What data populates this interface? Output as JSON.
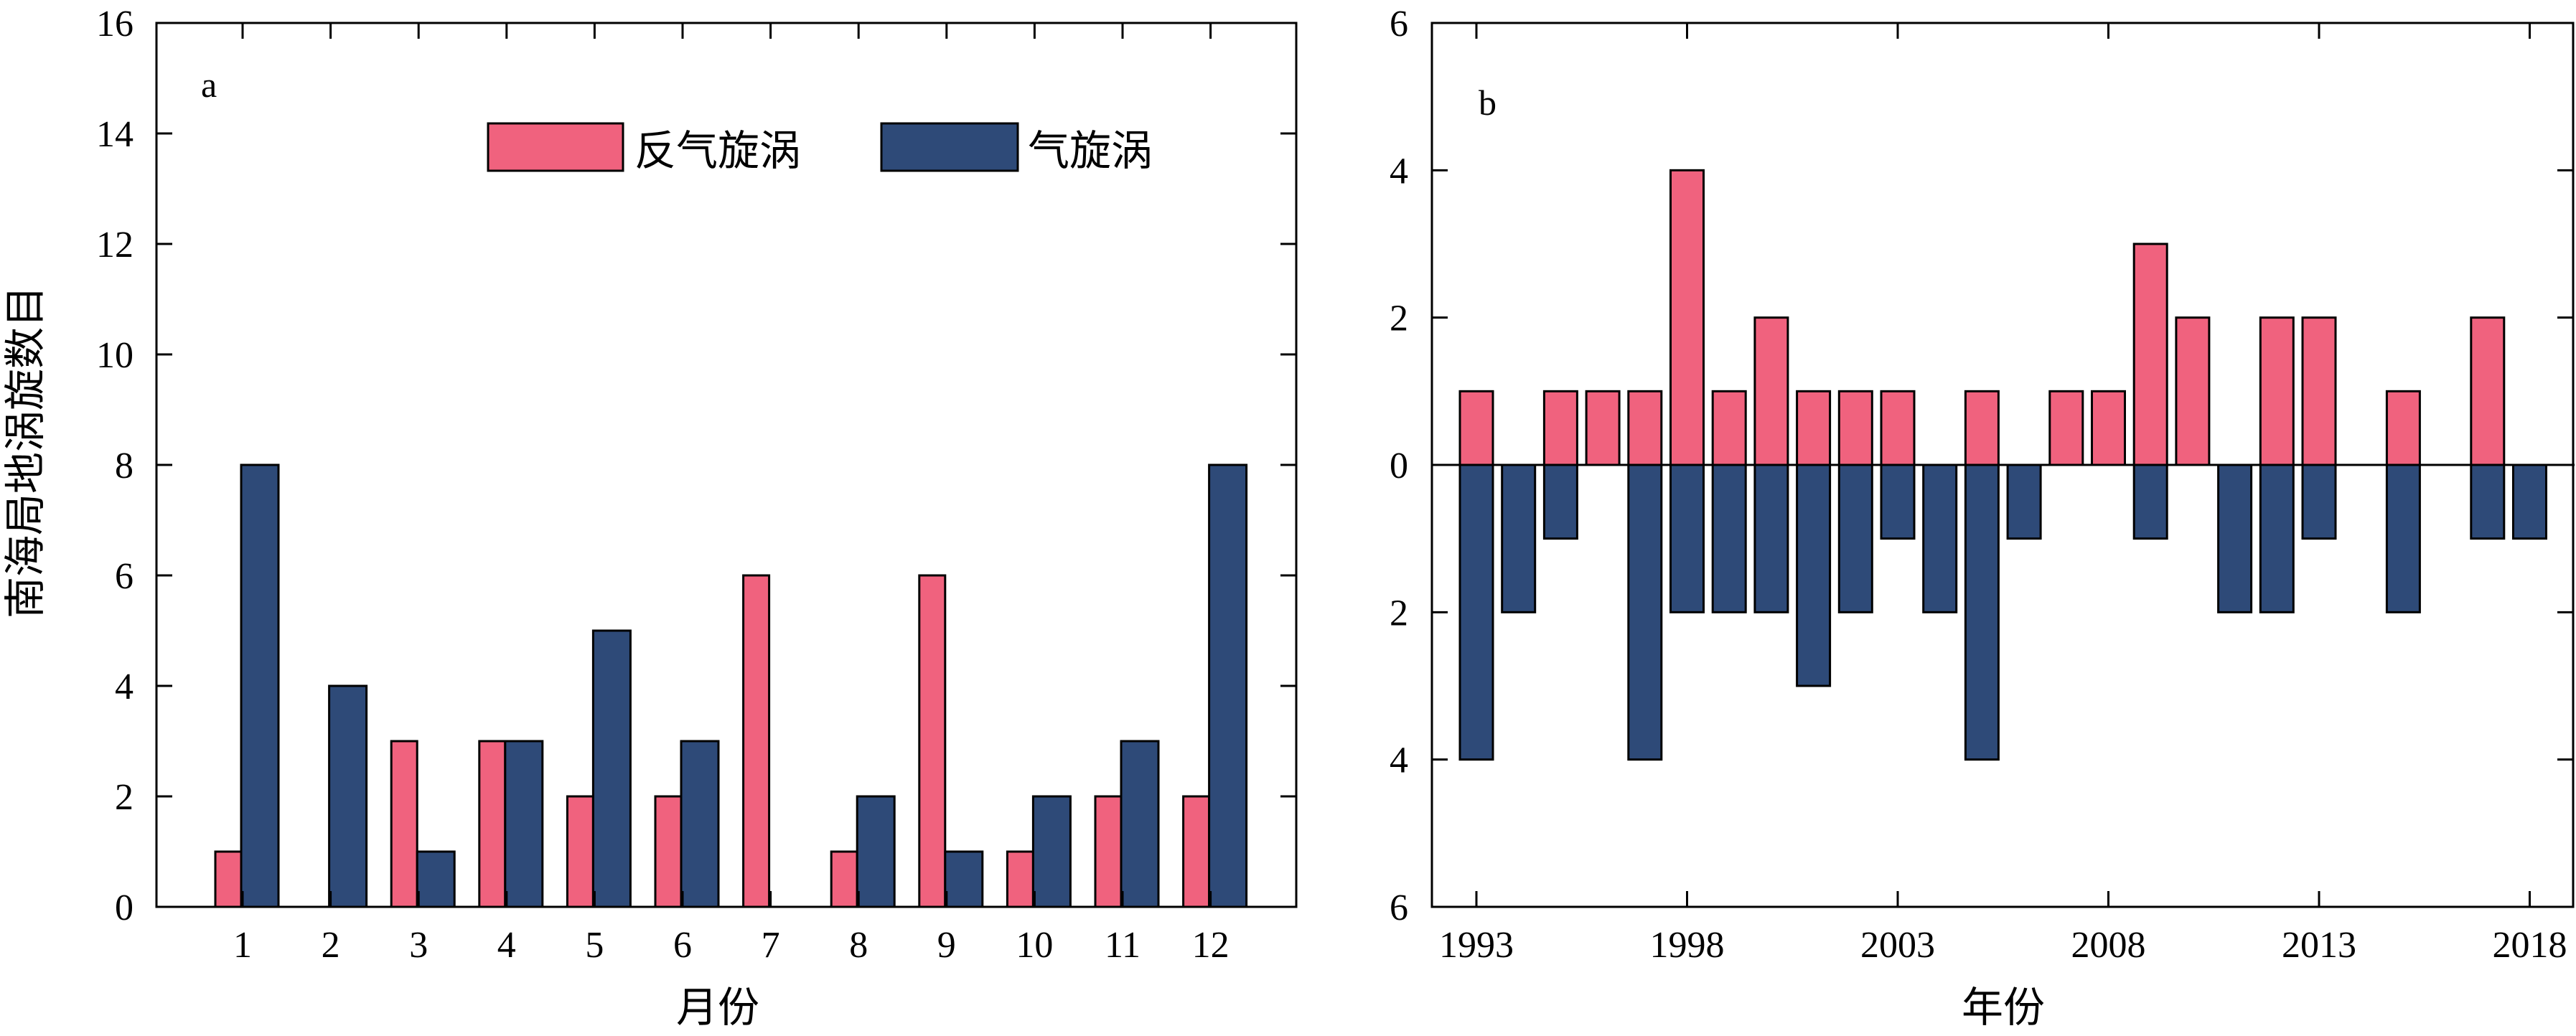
{
  "colors": {
    "anticyclonic": "#F0627E",
    "cyclonic": "#2E4A78"
  },
  "legend": {
    "anticyclonic_label": "反气旋涡",
    "cyclonic_label": "气旋涡"
  },
  "chart_data": [
    {
      "panel": "a",
      "type": "bar",
      "xlabel": "月份",
      "ylabel": "南海局地涡旋数目",
      "ylim": [
        0,
        16
      ],
      "yticks": [
        "0",
        "2",
        "4",
        "6",
        "8",
        "10",
        "12",
        "14",
        "16"
      ],
      "categories": [
        "1",
        "2",
        "3",
        "4",
        "5",
        "6",
        "7",
        "8",
        "9",
        "10",
        "11",
        "12"
      ],
      "series": [
        {
          "name": "反气旋涡",
          "values": [
            1,
            0,
            3,
            3,
            2,
            2,
            6,
            1,
            6,
            1,
            2,
            2
          ]
        },
        {
          "name": "气旋涡",
          "values": [
            8,
            4,
            1,
            3,
            5,
            3,
            0,
            2,
            1,
            2,
            3,
            8
          ]
        }
      ],
      "legend_position": "top"
    },
    {
      "panel": "b",
      "type": "bar",
      "xlabel": "年份",
      "ylabel": "",
      "ylim": [
        -6,
        6
      ],
      "yticks": [
        "6",
        "4",
        "2",
        "0",
        "2",
        "4",
        "6"
      ],
      "x_tick_labels": [
        "1993",
        "1998",
        "2003",
        "2008",
        "2013",
        "2018"
      ],
      "years": [
        1993,
        1994,
        1995,
        1996,
        1997,
        1998,
        1999,
        2000,
        2001,
        2002,
        2003,
        2004,
        2005,
        2006,
        2007,
        2008,
        2009,
        2010,
        2011,
        2012,
        2013,
        2014,
        2015,
        2016,
        2017,
        2018
      ],
      "series": [
        {
          "name": "反气旋涡",
          "direction": "up",
          "values": [
            1,
            0,
            1,
            1,
            1,
            4,
            1,
            2,
            1,
            1,
            1,
            0,
            1,
            0,
            1,
            1,
            3,
            2,
            0,
            2,
            2,
            0,
            1,
            0,
            2,
            0
          ]
        },
        {
          "name": "气旋涡",
          "direction": "down",
          "values": [
            4,
            2,
            1,
            0,
            4,
            2,
            2,
            2,
            3,
            2,
            1,
            2,
            4,
            1,
            0,
            0,
            1,
            0,
            2,
            2,
            1,
            0,
            2,
            0,
            1,
            1
          ]
        }
      ]
    }
  ]
}
